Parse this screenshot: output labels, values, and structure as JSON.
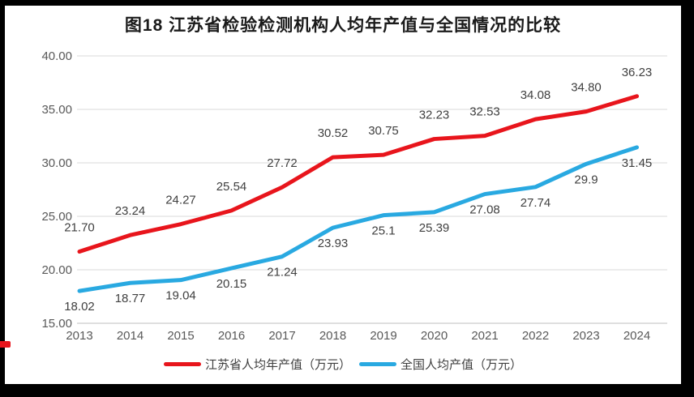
{
  "title": "图18  江苏省检验检测机构人均年产值与全国情况的比较",
  "colors": {
    "jiangsu": "#e8151c",
    "national": "#29a9e1",
    "grid": "#d9d9d9",
    "axis_line": "#bfbfbf",
    "axis_text": "#595959",
    "label_text": "#404040",
    "artifact_red": "#e8151c"
  },
  "chart_data": {
    "type": "line",
    "x": [
      "2013",
      "2014",
      "2015",
      "2016",
      "2017",
      "2018",
      "2019",
      "2020",
      "2021",
      "2022",
      "2023",
      "2024"
    ],
    "series": [
      {
        "name": "江苏省人均年产值（万元）",
        "color_key": "jiangsu",
        "values": [
          21.7,
          23.24,
          24.27,
          25.54,
          27.72,
          30.52,
          30.75,
          32.23,
          32.53,
          34.08,
          34.8,
          36.23
        ],
        "labels": [
          "21.70",
          "23.24",
          "24.27",
          "25.54",
          "27.72",
          "30.52",
          "30.75",
          "32.23",
          "32.53",
          "34.08",
          "34.80",
          "36.23"
        ],
        "label_position": "above"
      },
      {
        "name": "全国人均产值（万元）",
        "color_key": "national",
        "values": [
          18.02,
          18.77,
          19.04,
          20.15,
          21.24,
          23.93,
          25.1,
          25.39,
          27.08,
          27.74,
          29.9,
          31.45
        ],
        "labels": [
          "18.02",
          "18.77",
          "19.04",
          "20.15",
          "21.24",
          "23.93",
          "25.1",
          "25.39",
          "27.08",
          "27.74",
          "29.9",
          "31.45"
        ],
        "label_position": "below"
      }
    ],
    "y_ticks": [
      "40.00",
      "35.00",
      "30.00",
      "25.00",
      "20.00",
      "15.00"
    ],
    "ylim": [
      15,
      40
    ],
    "grid": true,
    "legend_position": "bottom"
  }
}
